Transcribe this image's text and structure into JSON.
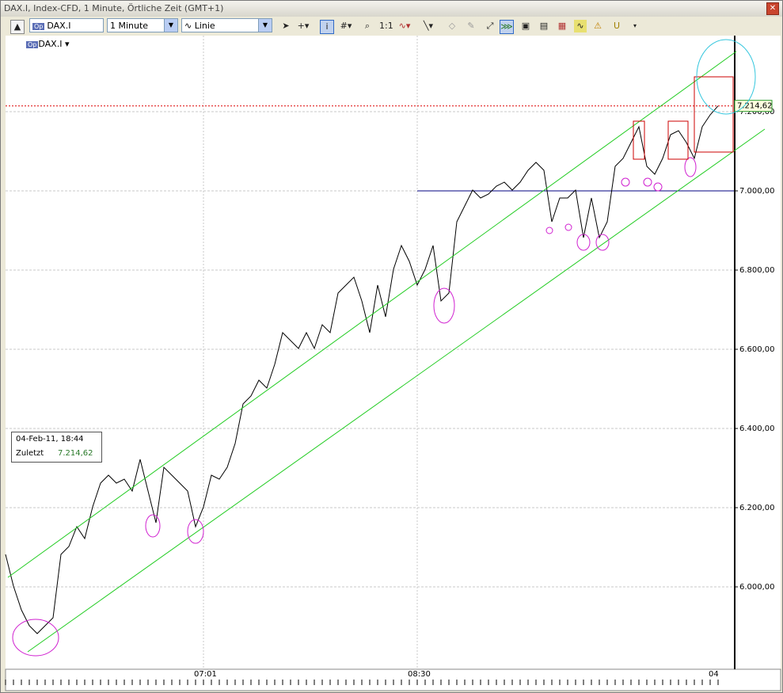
{
  "window": {
    "title": "DAX.I, Index-CFD, 1 Minute, Örtliche Zeit (GMT+1)"
  },
  "toolbar": {
    "symbol": "DAX.I",
    "interval": "1 Minute",
    "chart_style": "Linie"
  },
  "legend_symbol": "DAX.I",
  "info_box": {
    "datetime": "04-Feb-11, 18:44",
    "last_label": "Zuletzt",
    "last_value": "7.214,62"
  },
  "chart_data": {
    "type": "line",
    "categories": [
      null,
      null,
      null,
      null,
      null,
      null,
      null,
      null,
      null,
      null,
      null,
      null,
      null,
      null,
      null,
      null,
      null,
      null,
      null,
      null,
      null,
      null,
      null,
      null,
      null,
      "07:01",
      null,
      null,
      null,
      null,
      null,
      null,
      null,
      null,
      null,
      null,
      null,
      null,
      null,
      null,
      null,
      null,
      null,
      null,
      null,
      null,
      null,
      null,
      null,
      null,
      null,
      null,
      "08:30",
      null,
      null,
      null,
      null,
      null,
      null,
      null,
      null,
      null,
      null,
      null,
      null,
      null,
      null,
      null,
      null,
      null,
      null,
      null,
      null,
      null,
      null,
      null,
      null,
      null,
      null,
      null,
      null,
      null,
      null,
      null,
      null,
      null,
      null,
      null,
      null,
      null,
      "04"
    ],
    "series": [
      {
        "name": "DAX.I",
        "color": "#000000",
        "values": [
          6082,
          6002,
          5942,
          5902,
          5882,
          5902,
          5922,
          6082,
          6102,
          6152,
          6122,
          6202,
          6262,
          6282,
          6262,
          6272,
          6242,
          6322,
          6242,
          6162,
          6302,
          6282,
          6262,
          6242,
          6152,
          6202,
          6282,
          6272,
          6302,
          6362,
          6462,
          6482,
          6522,
          6502,
          6562,
          6642,
          6622,
          6602,
          6642,
          6602,
          6662,
          6642,
          6742,
          6762,
          6782,
          6722,
          6642,
          6762,
          6682,
          6802,
          6862,
          6822,
          6762,
          6802,
          6862,
          6722,
          6742,
          6922,
          6962,
          7002,
          6982,
          6992,
          7012,
          7022,
          7002,
          7022,
          7052,
          7072,
          7052,
          6922,
          6982,
          6982,
          7002,
          6882,
          6982,
          6882,
          6922,
          7062,
          7082,
          7122,
          7162,
          7062,
          7042,
          7082,
          7142,
          7152,
          7122,
          7082,
          7162,
          7192,
          7214.62
        ]
      }
    ],
    "ylim": [
      5792,
      7392
    ],
    "yticks": [
      {
        "value": 6000,
        "label": "6.000,00"
      },
      {
        "value": 6200,
        "label": "6.200,00"
      },
      {
        "value": 6400,
        "label": "6.400,00"
      },
      {
        "value": 6600,
        "label": "6.600,00"
      },
      {
        "value": 6800,
        "label": "6.800,00"
      },
      {
        "value": 7000,
        "label": "7.000,00"
      },
      {
        "value": 7200,
        "label": "7.200,00"
      }
    ],
    "hline": 7000,
    "grid": true
  }
}
